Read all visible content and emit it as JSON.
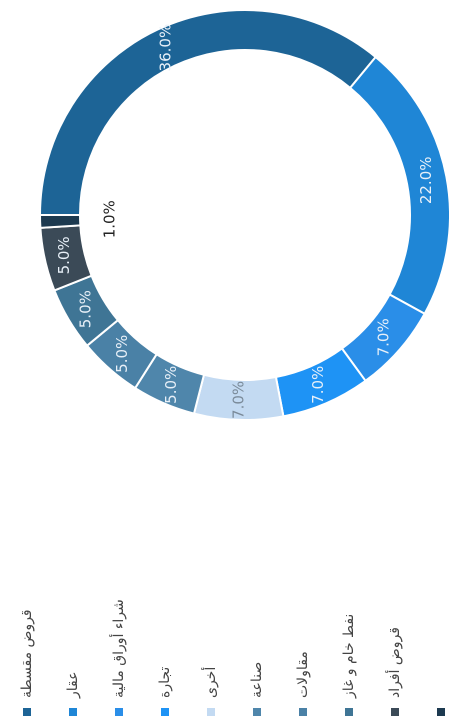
{
  "chart_data": {
    "type": "donut",
    "categories": [
      "قروض مقسطة",
      "عقار",
      "شراء أوراق مالية",
      "تجارة",
      "أخرى",
      "صناعة",
      "مقاولات",
      "نفط خام و غاز",
      "قروض أفراد",
      null
    ],
    "values": [
      36,
      22,
      7,
      7,
      7,
      5,
      5,
      5,
      5,
      1
    ],
    "value_labels": [
      "36.0%",
      "22.0%",
      "7.0%",
      "7.0%",
      "7.0%",
      "5.0%",
      "5.0%",
      "5.0%",
      "5.0%",
      "1.0%"
    ],
    "colors": [
      "#1d6496",
      "#1f86d6",
      "#2a8ee8",
      "#1e93f5",
      "#c3daf2",
      "#4f86ab",
      "#4a81a6",
      "#3f7595",
      "#3b4a57",
      "#1d3a50"
    ]
  }
}
